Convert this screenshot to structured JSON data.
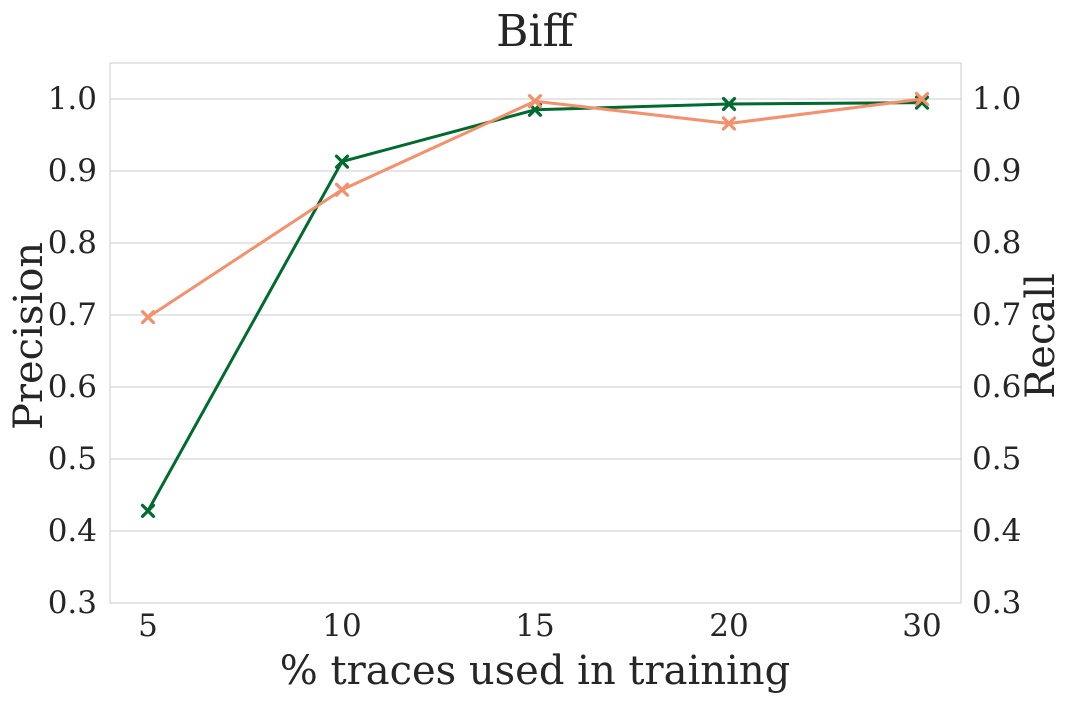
{
  "chart_data": {
    "type": "line",
    "title": "Biff",
    "xlabel": "% traces used in training",
    "ylabel_left": "Precision",
    "ylabel_right": "Recall",
    "categories": [
      "5",
      "10",
      "15",
      "20",
      "30"
    ],
    "ylim": [
      0.3,
      1.05
    ],
    "yticks": [
      "0.3",
      "0.4",
      "0.5",
      "0.6",
      "0.7",
      "0.8",
      "0.9",
      "1.0"
    ],
    "grid": true,
    "series": [
      {
        "key": "precision",
        "axis": "left",
        "color": "#006b2e",
        "values": [
          0.428,
          0.913,
          0.985,
          0.993,
          0.995
        ]
      },
      {
        "key": "recall",
        "axis": "right",
        "color": "#f4906c",
        "values": [
          0.697,
          0.874,
          0.997,
          0.966,
          1.0
        ]
      }
    ]
  }
}
